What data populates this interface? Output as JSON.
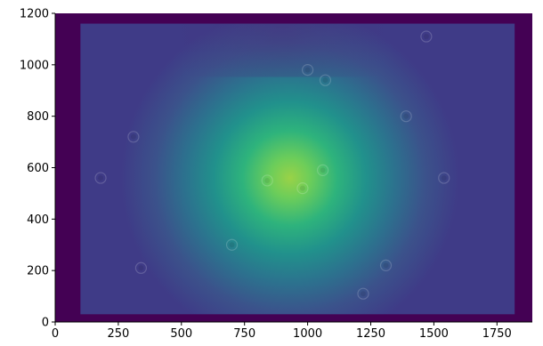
{
  "chart_data": {
    "type": "heatmap",
    "title": "",
    "xlabel": "",
    "ylabel": "",
    "xlim": [
      0,
      1890
    ],
    "ylim": [
      0,
      1200
    ],
    "x_ticks": [
      0,
      250,
      500,
      750,
      1000,
      1250,
      1500,
      1750
    ],
    "y_ticks": [
      0,
      200,
      400,
      600,
      800,
      1000,
      1200
    ],
    "x_tick_labels": [
      "0",
      "250",
      "500",
      "750",
      "1000",
      "1250",
      "1500",
      "1750"
    ],
    "y_tick_labels": [
      "0",
      "200",
      "400",
      "600",
      "800",
      "1000",
      "1200"
    ],
    "colormap": "viridis",
    "grid": false,
    "legend": false,
    "background_color": "#440154",
    "illuminated_region": {
      "x_range": [
        100,
        1820
      ],
      "y_range": [
        30,
        1160
      ]
    },
    "hotspot_center": {
      "x": 930,
      "y": 560
    },
    "peak_color": "#9ad247",
    "edge_color": "#3f3b87",
    "dust_rings": [
      {
        "x": 1060,
        "y": 590
      },
      {
        "x": 840,
        "y": 550
      },
      {
        "x": 980,
        "y": 520
      },
      {
        "x": 1070,
        "y": 940
      },
      {
        "x": 1000,
        "y": 980
      },
      {
        "x": 1390,
        "y": 800
      },
      {
        "x": 310,
        "y": 720
      },
      {
        "x": 700,
        "y": 300
      },
      {
        "x": 1540,
        "y": 560
      },
      {
        "x": 1310,
        "y": 220
      },
      {
        "x": 1220,
        "y": 110
      },
      {
        "x": 340,
        "y": 210
      },
      {
        "x": 180,
        "y": 560
      },
      {
        "x": 1470,
        "y": 1110
      }
    ]
  }
}
